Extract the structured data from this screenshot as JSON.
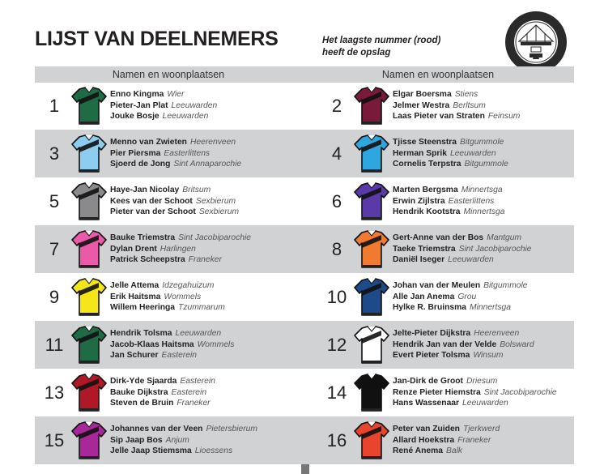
{
  "header": {
    "title": "LIJST VAN DEELNEMERS",
    "note_line1": "Het laagste nummer (rood)",
    "note_line2": "heeft de opslag",
    "column_header": "Namen en woonplaatsen",
    "seal_text": "PERMANENTE COMMISSIE DER FRANEKER KAATSPARTIJ 1853"
  },
  "teams": [
    {
      "number": "1",
      "shirt_color": "#1f6b45",
      "players": [
        {
          "name": "Enno Kingma",
          "place": "Wier"
        },
        {
          "name": "Pieter-Jan Plat",
          "place": "Leeuwarden"
        },
        {
          "name": "Jouke Bosje",
          "place": "Leeuwarden"
        }
      ]
    },
    {
      "number": "2",
      "shirt_color": "#7a1a3a",
      "players": [
        {
          "name": "Elgar Boersma",
          "place": "Stiens"
        },
        {
          "name": "Jelmer Westra",
          "place": "Berltsum"
        },
        {
          "name": "Laas Pieter van Straten",
          "place": "Feinsum"
        }
      ]
    },
    {
      "number": "3",
      "shirt_color": "#8fcdf0",
      "players": [
        {
          "name": "Menno van Zwieten",
          "place": "Heerenveen"
        },
        {
          "name": "Pier Piersma",
          "place": "Easterlittens"
        },
        {
          "name": "Sjoerd de Jong",
          "place": "Sint Annaparochie"
        }
      ]
    },
    {
      "number": "4",
      "shirt_color": "#2ea6e0",
      "players": [
        {
          "name": "Tjisse Steenstra",
          "place": "Bitgummole"
        },
        {
          "name": "Herman Sprik",
          "place": "Leeuwarden"
        },
        {
          "name": "Cornelis Terpstra",
          "place": "Bitgummole"
        }
      ]
    },
    {
      "number": "5",
      "shirt_color": "#8a8a8c",
      "players": [
        {
          "name": "Haye-Jan Nicolay",
          "place": "Britsum"
        },
        {
          "name": "Kees van der Schoot",
          "place": "Sexbierum"
        },
        {
          "name": "Pieter van der Schoot",
          "place": "Sexbierum"
        }
      ]
    },
    {
      "number": "6",
      "shirt_color": "#5a3aa8",
      "players": [
        {
          "name": "Marten Bergsma",
          "place": "Minnertsga"
        },
        {
          "name": "Erwin Zijlstra",
          "place": "Easterlittens"
        },
        {
          "name": "Hendrik Kootstra",
          "place": "Minnertsga"
        }
      ]
    },
    {
      "number": "7",
      "shirt_color": "#ea5aa8",
      "players": [
        {
          "name": "Bauke Triemstra",
          "place": "Sint Jacobiparochie"
        },
        {
          "name": "Dylan Drent",
          "place": "Harlingen"
        },
        {
          "name": "Patrick Scheepstra",
          "place": "Franeker"
        }
      ]
    },
    {
      "number": "8",
      "shirt_color": "#f07a30",
      "players": [
        {
          "name": "Gert-Anne van der Bos",
          "place": "Mantgum"
        },
        {
          "name": "Taeke Triemstra",
          "place": "Sint Jacobiparochie"
        },
        {
          "name": "Daniël Iseger",
          "place": "Leeuwarden"
        }
      ]
    },
    {
      "number": "9",
      "shirt_color": "#f5e61a",
      "players": [
        {
          "name": "Jelle Attema",
          "place": "Idzegahuizum"
        },
        {
          "name": "Erik Haitsma",
          "place": "Wommels"
        },
        {
          "name": "Willem Heeringa",
          "place": "Tzummarum"
        }
      ]
    },
    {
      "number": "10",
      "shirt_color": "#1f4a8a",
      "players": [
        {
          "name": "Johan van der Meulen",
          "place": "Bitgummole"
        },
        {
          "name": "Alle Jan Anema",
          "place": "Grou"
        },
        {
          "name": "Hylke R. Bruinsma",
          "place": "Minnertsga"
        }
      ]
    },
    {
      "number": "11",
      "shirt_color": "#1f6b45",
      "players": [
        {
          "name": "Hendrik Tolsma",
          "place": "Leeuwarden"
        },
        {
          "name": "Jacob-Klaas Haitsma",
          "place": "Wommels"
        },
        {
          "name": "Jan Schurer",
          "place": "Easterein"
        }
      ]
    },
    {
      "number": "12",
      "shirt_color": "#ffffff",
      "players": [
        {
          "name": "Jelte-Pieter Dijkstra",
          "place": "Heerenveen"
        },
        {
          "name": "Hendrik Jan van der Velde",
          "place": "Bolsward"
        },
        {
          "name": "Evert Pieter Tolsma",
          "place": "Winsum"
        }
      ]
    },
    {
      "number": "13",
      "shirt_color": "#b0182a",
      "players": [
        {
          "name": "Dirk-Yde Sjaarda",
          "place": "Easterein"
        },
        {
          "name": "Bauke Dijkstra",
          "place": "Easterein"
        },
        {
          "name": "Steven de Bruin",
          "place": "Franeker"
        }
      ]
    },
    {
      "number": "14",
      "shirt_color": "#111111",
      "players": [
        {
          "name": "Jan-Dirk de Groot",
          "place": "Driesum"
        },
        {
          "name": "Renze Pieter Hiemstra",
          "place": "Sint Jacobiparochie"
        },
        {
          "name": "Hans Wassenaar",
          "place": "Leeuwarden"
        }
      ]
    },
    {
      "number": "15",
      "shirt_color": "#a8289a",
      "players": [
        {
          "name": "Johannes van der Veen",
          "place": "Pietersbierum"
        },
        {
          "name": "Sip Jaap Bos",
          "place": "Anjum"
        },
        {
          "name": "Jelle Jaap Stiemsma",
          "place": "Lioessens"
        }
      ]
    },
    {
      "number": "16",
      "shirt_color": "#e8442e",
      "players": [
        {
          "name": "Peter van Zuiden",
          "place": "Tjerkwerd"
        },
        {
          "name": "Allard Hoekstra",
          "place": "Franeker"
        },
        {
          "name": "René Anema",
          "place": "Balk"
        }
      ]
    }
  ]
}
